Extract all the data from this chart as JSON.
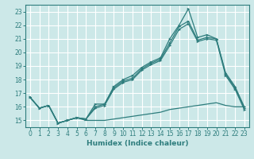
{
  "xlabel": "Humidex (Indice chaleur)",
  "bg_color": "#cce8e8",
  "grid_color": "#ffffff",
  "line_color": "#2e7d7d",
  "xlim": [
    -0.5,
    23.5
  ],
  "ylim": [
    14.5,
    23.5
  ],
  "xticks": [
    0,
    1,
    2,
    3,
    4,
    5,
    6,
    7,
    8,
    9,
    10,
    11,
    12,
    13,
    14,
    15,
    16,
    17,
    18,
    19,
    20,
    21,
    22,
    23
  ],
  "yticks": [
    15,
    16,
    17,
    18,
    19,
    20,
    21,
    22,
    23
  ],
  "series_upper1_x": [
    0,
    1,
    2,
    3,
    4,
    5,
    6,
    7,
    8,
    9,
    10,
    11,
    12,
    13,
    14,
    15,
    16,
    17,
    18,
    19,
    20,
    21,
    22,
    23
  ],
  "series_upper1_y": [
    16.7,
    15.9,
    16.1,
    14.8,
    15.0,
    15.2,
    15.1,
    16.2,
    16.2,
    17.5,
    18.0,
    18.3,
    18.9,
    19.3,
    19.6,
    21.0,
    22.0,
    23.2,
    21.1,
    21.3,
    21.0,
    18.5,
    17.5,
    16.0
  ],
  "series_upper2_x": [
    0,
    1,
    2,
    3,
    4,
    5,
    6,
    7,
    8,
    9,
    10,
    11,
    12,
    13,
    14,
    15,
    16,
    17,
    18,
    19,
    20,
    21,
    22,
    23
  ],
  "series_upper2_y": [
    16.7,
    15.9,
    16.1,
    14.8,
    15.0,
    15.2,
    15.1,
    16.0,
    16.2,
    17.4,
    17.9,
    18.1,
    18.8,
    19.2,
    19.5,
    20.7,
    21.9,
    22.3,
    20.9,
    21.1,
    21.0,
    18.4,
    17.4,
    15.9
  ],
  "series_upper3_x": [
    0,
    1,
    2,
    3,
    4,
    5,
    6,
    7,
    8,
    9,
    10,
    11,
    12,
    13,
    14,
    15,
    16,
    17,
    18,
    19,
    20,
    21,
    22,
    23
  ],
  "series_upper3_y": [
    16.7,
    15.9,
    16.1,
    14.8,
    15.0,
    15.2,
    15.1,
    15.9,
    16.1,
    17.3,
    17.8,
    18.0,
    18.7,
    19.1,
    19.4,
    20.5,
    21.7,
    22.1,
    20.8,
    21.0,
    20.9,
    18.3,
    17.3,
    15.8
  ],
  "series_lower_x": [
    0,
    1,
    2,
    3,
    4,
    5,
    6,
    7,
    8,
    9,
    10,
    11,
    12,
    13,
    14,
    15,
    16,
    17,
    18,
    19,
    20,
    21,
    22,
    23
  ],
  "series_lower_y": [
    16.7,
    15.9,
    16.1,
    14.8,
    15.0,
    15.2,
    15.0,
    15.0,
    15.0,
    15.1,
    15.2,
    15.3,
    15.4,
    15.5,
    15.6,
    15.8,
    15.9,
    16.0,
    16.1,
    16.2,
    16.3,
    16.1,
    16.0,
    16.0
  ]
}
